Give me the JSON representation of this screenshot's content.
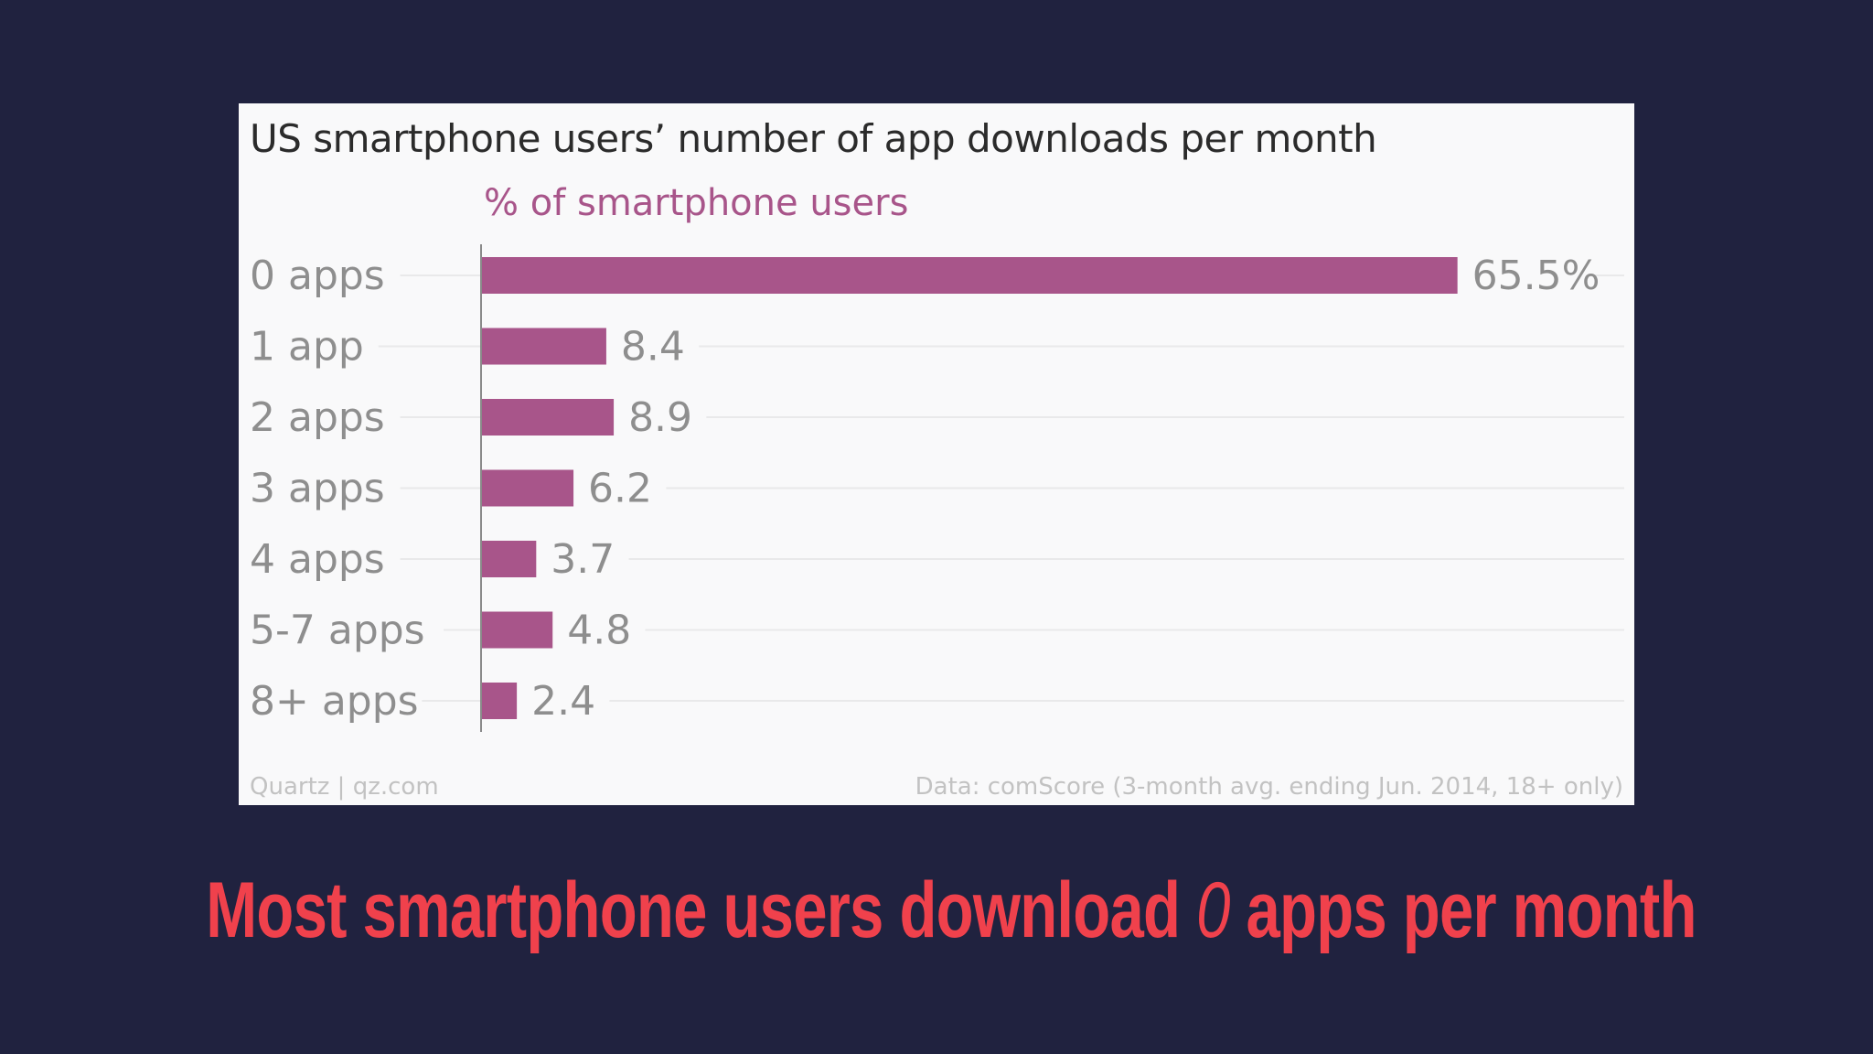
{
  "slide": {
    "caption_before": "Most smartphone users download",
    "caption_emphasis": "0",
    "caption_after": "apps per month"
  },
  "card": {
    "source_left": "Quartz | qz.com",
    "source_right": "Data: comScore (3-month avg. ending Jun. 2014, 18+ only)"
  },
  "chart_data": {
    "type": "bar",
    "orientation": "horizontal",
    "title": "US smartphone users’ number of app downloads per month",
    "subtitle": "% of smartphone users",
    "categories": [
      "0 apps",
      "1 app",
      "2 apps",
      "3 apps",
      "4 apps",
      "5-7 apps",
      "8+ apps"
    ],
    "values": [
      65.5,
      8.4,
      8.9,
      6.2,
      3.7,
      4.8,
      2.4
    ],
    "value_labels": [
      "65.5%",
      "8.4",
      "8.9",
      "6.2",
      "3.7",
      "4.8",
      "2.4"
    ],
    "xlim": [
      0,
      70
    ],
    "grid": true,
    "legend": "none",
    "colors": {
      "bar": "#a8558a",
      "subtitle": "#a8558a",
      "category_label": "#8e8e8e",
      "value_label": "#8e8e8e",
      "gridline": "#e9e9ea",
      "axis": "#8a8a8a",
      "source": "#c2c2c2"
    }
  },
  "theme": {
    "background": "#20223f",
    "card_background": "#f9f9fa",
    "caption_color": "#f0414c",
    "title_color": "#2b2b2b"
  }
}
